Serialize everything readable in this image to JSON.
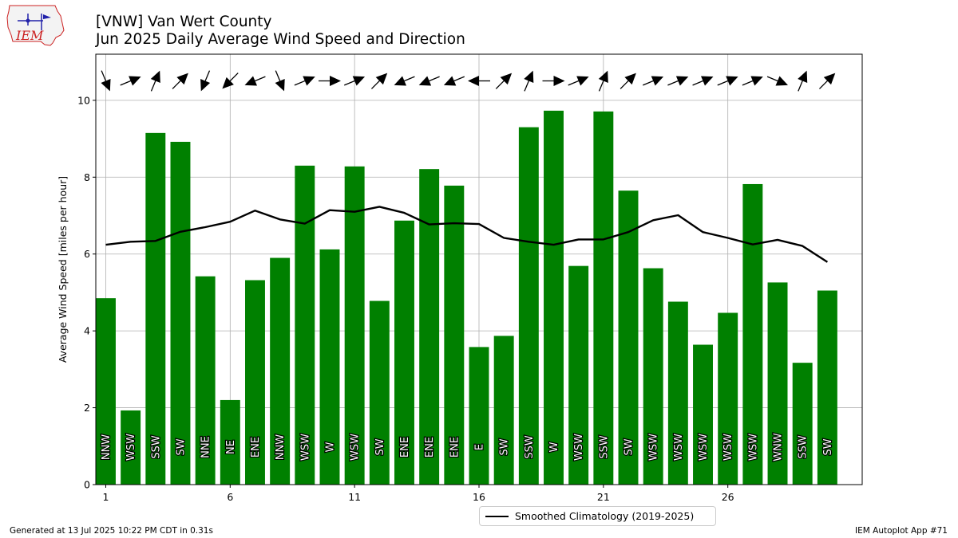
{
  "logo": {
    "text": "IEM"
  },
  "header": {
    "title": "[VNW] Van Wert County",
    "subtitle": "Jun 2025 Daily Average Wind Speed and Direction"
  },
  "footer": {
    "generated": "Generated at 13 Jul 2025 10:22 PM CDT in 0.31s",
    "app": "IEM Autoplot App #71"
  },
  "legend": {
    "label": "Smoothed Climatology (2019-2025)"
  },
  "colors": {
    "bar": "#008000",
    "line": "#000000",
    "grid": "#b0b0b0",
    "logo": "#cc2222"
  },
  "chart_data": {
    "type": "bar",
    "title": "[VNW] Van Wert County",
    "subtitle": "Jun 2025 Daily Average Wind Speed and Direction",
    "xlabel": "",
    "ylabel": "Average Wind Speed [miles per hour]",
    "xlim": [
      0.6,
      31.4
    ],
    "ylim": [
      0,
      11.2
    ],
    "xticks": [
      1,
      6,
      11,
      16,
      21,
      26
    ],
    "yticks": [
      0,
      2,
      4,
      6,
      8,
      10
    ],
    "grid": true,
    "legend_position": "bottom-center",
    "days": [
      1,
      2,
      3,
      4,
      5,
      6,
      7,
      8,
      9,
      10,
      11,
      12,
      13,
      14,
      15,
      16,
      17,
      18,
      19,
      20,
      21,
      22,
      23,
      24,
      25,
      26,
      27,
      28,
      29,
      30
    ],
    "speed": [
      4.85,
      1.93,
      9.15,
      8.92,
      5.42,
      2.2,
      5.32,
      5.9,
      8.3,
      6.12,
      8.28,
      4.78,
      6.87,
      8.21,
      7.78,
      3.58,
      3.87,
      9.3,
      9.73,
      5.69,
      9.71,
      7.65,
      5.63,
      4.76,
      3.64,
      4.47,
      7.82,
      5.26,
      3.17,
      5.05
    ],
    "direction_labels": [
      "NNW",
      "WSW",
      "SSW",
      "SW",
      "NNE",
      "NE",
      "ENE",
      "NNW",
      "WSW",
      "W",
      "WSW",
      "SW",
      "ENE",
      "ENE",
      "ENE",
      "E",
      "SW",
      "SSW",
      "W",
      "WSW",
      "SSW",
      "SW",
      "WSW",
      "WSW",
      "WSW",
      "WSW",
      "WSW",
      "WNW",
      "SSW",
      "SW"
    ],
    "direction_deg": [
      337.5,
      247.5,
      202.5,
      225,
      22.5,
      45,
      67.5,
      337.5,
      247.5,
      270,
      247.5,
      225,
      67.5,
      67.5,
      67.5,
      90,
      225,
      202.5,
      270,
      247.5,
      202.5,
      225,
      247.5,
      247.5,
      247.5,
      247.5,
      247.5,
      292.5,
      202.5,
      225
    ],
    "series": [
      {
        "name": "Smoothed Climatology (2019-2025)",
        "type": "line",
        "values": [
          6.24,
          6.32,
          6.34,
          6.58,
          6.7,
          6.84,
          7.13,
          6.9,
          6.79,
          7.14,
          7.1,
          7.23,
          7.07,
          6.77,
          6.8,
          6.78,
          6.42,
          6.32,
          6.24,
          6.38,
          6.38,
          6.57,
          6.88,
          7.01,
          6.57,
          6.42,
          6.25,
          6.37,
          6.21,
          5.79
        ]
      }
    ]
  }
}
